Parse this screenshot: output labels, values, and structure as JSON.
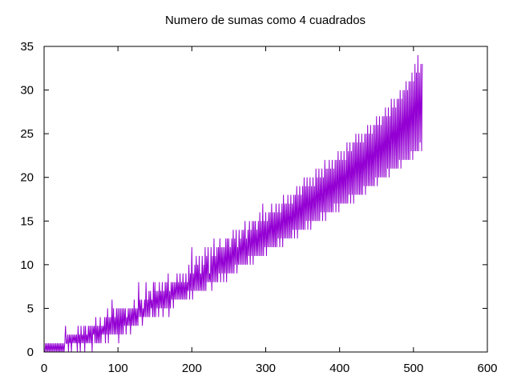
{
  "chart_data": {
    "type": "line",
    "title": "Numero de sumas como 4 cuadrados",
    "xlabel": "",
    "ylabel": "",
    "xlim": [
      0,
      600
    ],
    "ylim": [
      0,
      35
    ],
    "x_ticks": [
      0,
      100,
      200,
      300,
      400,
      500,
      600
    ],
    "y_ticks": [
      0,
      5,
      10,
      15,
      20,
      25,
      30,
      35
    ],
    "grid": false,
    "legend": "none",
    "series": [
      {
        "color": "#9400d3",
        "x_start": 1,
        "x_step": 1,
        "values": [
          0,
          1,
          0,
          1,
          0,
          1,
          0,
          1,
          0,
          1,
          0,
          1,
          0,
          1,
          0,
          1,
          0,
          1,
          0,
          1,
          0,
          1,
          0,
          1,
          0,
          1,
          0,
          1,
          3,
          1,
          1,
          2,
          0,
          2,
          1,
          2,
          0,
          2,
          1,
          2,
          1,
          2,
          1,
          2,
          0,
          3,
          1,
          2,
          0,
          3,
          1,
          2,
          1,
          3,
          0,
          3,
          1,
          2,
          1,
          3,
          1,
          3,
          1,
          3,
          0,
          3,
          2,
          3,
          1,
          4,
          1,
          3,
          1,
          3,
          1,
          4,
          1,
          3,
          2,
          3,
          2,
          4,
          1,
          4,
          2,
          5,
          1,
          4,
          2,
          4,
          2,
          6,
          2,
          5,
          2,
          4,
          2,
          5,
          2,
          5,
          1,
          5,
          2,
          5,
          2,
          5,
          2,
          5,
          3,
          5,
          2,
          4,
          3,
          5,
          3,
          5,
          2,
          5,
          3,
          5,
          3,
          6,
          3,
          5,
          3,
          5,
          3,
          8,
          4,
          6,
          4,
          6,
          3,
          5,
          4,
          6,
          4,
          8,
          4,
          6,
          4,
          7,
          4,
          7,
          5,
          6,
          4,
          8,
          4,
          8,
          4,
          7,
          5,
          7,
          4,
          8,
          5,
          7,
          5,
          8,
          4,
          7,
          5,
          8,
          5,
          8,
          5,
          9,
          4,
          7,
          5,
          8,
          6,
          8,
          5,
          8,
          6,
          8,
          6,
          9,
          6,
          8,
          6,
          9,
          6,
          8,
          6,
          9,
          6,
          8,
          6,
          9,
          6,
          8,
          7,
          10,
          6,
          9,
          7,
          12,
          6,
          9,
          7,
          10,
          7,
          11,
          7,
          10,
          7,
          11,
          7,
          9,
          7,
          11,
          7,
          10,
          7,
          12,
          7,
          11,
          8,
          12,
          8,
          9,
          8,
          12,
          7,
          11,
          8,
          13,
          8,
          11,
          8,
          12,
          8,
          12,
          9,
          13,
          8,
          12,
          9,
          12,
          8,
          12,
          9,
          13,
          8,
          13,
          9,
          13,
          9,
          12,
          9,
          13,
          9,
          14,
          9,
          13,
          10,
          14,
          9,
          12,
          10,
          14,
          10,
          13,
          10,
          14,
          10,
          14,
          10,
          15,
          10,
          13,
          10,
          14,
          11,
          15,
          10,
          14,
          11,
          15,
          10,
          15,
          11,
          15,
          11,
          14,
          11,
          15,
          11,
          16,
          11,
          15,
          11,
          17,
          11,
          15,
          12,
          16,
          11,
          15,
          12,
          16,
          12,
          16,
          12,
          17,
          12,
          16,
          12,
          16,
          12,
          17,
          12,
          16,
          13,
          17,
          12,
          16,
          13,
          17,
          12,
          18,
          13,
          17,
          13,
          17,
          13,
          18,
          13,
          17,
          13,
          18,
          13,
          17,
          14,
          18,
          13,
          18,
          14,
          19,
          13,
          18,
          14,
          19,
          14,
          18,
          14,
          19,
          14,
          20,
          14,
          19,
          15,
          20,
          14,
          19,
          15,
          20,
          14,
          19,
          15,
          20,
          15,
          19,
          15,
          21,
          15,
          20,
          15,
          21,
          15,
          20,
          16,
          21,
          15,
          20,
          16,
          22,
          15,
          21,
          16,
          21,
          16,
          22,
          16,
          21,
          16,
          22,
          16,
          21,
          17,
          22,
          16,
          22,
          17,
          23,
          16,
          22,
          17,
          23,
          17,
          22,
          17,
          23,
          17,
          22,
          17,
          24,
          17,
          23,
          18,
          24,
          17,
          23,
          18,
          24,
          17,
          24,
          18,
          25,
          18,
          24,
          18,
          25,
          18,
          24,
          18,
          25,
          18,
          24,
          19,
          25,
          18,
          25,
          19,
          26,
          19,
          25,
          19,
          26,
          19,
          25,
          19,
          26,
          19,
          26,
          20,
          27,
          19,
          26,
          20,
          27,
          20,
          26,
          20,
          27,
          20,
          27,
          20,
          28,
          20,
          27,
          21,
          28,
          20,
          27,
          21,
          29,
          21,
          28,
          21,
          29,
          21,
          28,
          21,
          29,
          21,
          29,
          22,
          30,
          21,
          29,
          22,
          30,
          22,
          30,
          22,
          31,
          22,
          30,
          22,
          31,
          22,
          31,
          23,
          32,
          22,
          31,
          23,
          33,
          23,
          32,
          23,
          34,
          23,
          32,
          24,
          33,
          23,
          33
        ]
      }
    ]
  }
}
